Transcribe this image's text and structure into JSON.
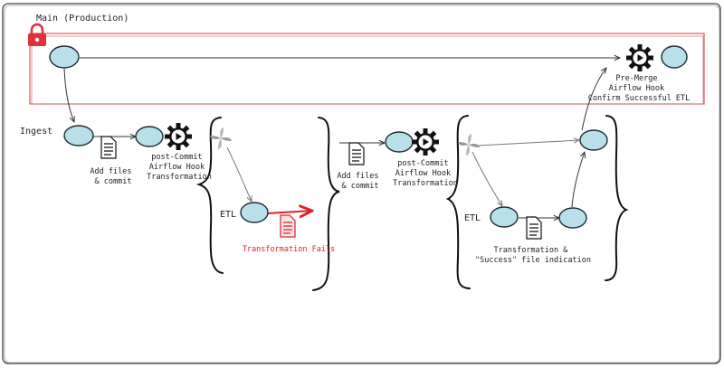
{
  "diagram": {
    "main_branch_label": "Main (Production)",
    "ingest_label": "Ingest",
    "etl_label_1": "ETL",
    "etl_label_2": "ETL",
    "step1_add_files": [
      "Add files",
      "& commit"
    ],
    "step1_hook": [
      "post-Commit",
      "Airflow Hook",
      "Transformation"
    ],
    "step1_fail": "Transformation Fails",
    "step2_add_files": [
      "Add files",
      "& commit"
    ],
    "step2_hook": [
      "post-Commit",
      "Airflow Hook",
      "Transformation"
    ],
    "step2_success": [
      "Transformation &",
      "\"Success\" file indication"
    ],
    "premerge_hook": [
      "Pre-Merge",
      "Airflow Hook",
      "Confirm Successful ETL"
    ],
    "colors": {
      "node_fill": "#b7e0ea",
      "main_box": "#e05a5a",
      "fail": "#d22222",
      "lock": "#e0303a"
    },
    "icons": [
      "lock-icon",
      "file-icon",
      "gear-play-icon",
      "pinwheel-icon",
      "red-file-icon"
    ]
  }
}
